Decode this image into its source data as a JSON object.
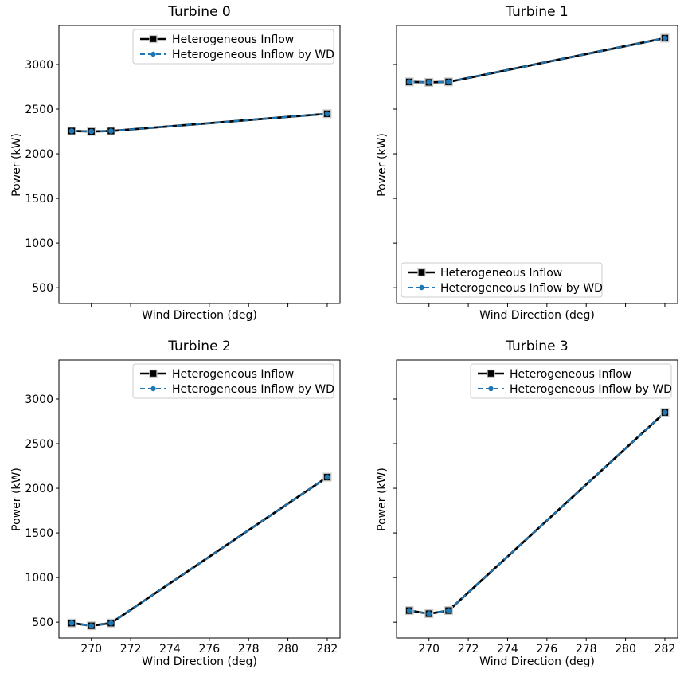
{
  "figure": {
    "background": "#ffffff"
  },
  "colors": {
    "series1": "#000000",
    "series2": "#1f77b4",
    "marker_edge": "#c8c8c8",
    "legend_border": "#cccccc",
    "legend_bg": "rgba(255,255,255,0.88)",
    "axis": "#000000",
    "text": "#000000"
  },
  "chart_data": [
    {
      "type": "line",
      "title": "Turbine 0",
      "xlabel": "Wind Direction (deg)",
      "ylabel": "Power (kW)",
      "x": [
        269,
        270,
        271,
        282
      ],
      "series": [
        {
          "name": "Heterogeneous Inflow",
          "values": [
            2255,
            2250,
            2255,
            2448
          ],
          "line": "solid",
          "color": "#000000",
          "marker": "square"
        },
        {
          "name": "Heterogeneous Inflow by WD",
          "values": [
            2255,
            2250,
            2255,
            2448
          ],
          "line": "dashed",
          "color": "#1f77b4",
          "marker": "circle"
        }
      ],
      "xlim": [
        268.35,
        282.65
      ],
      "ylim": [
        323,
        3437
      ],
      "xticks": [
        270,
        272,
        274,
        276,
        278,
        280,
        282
      ],
      "yticks": [
        500,
        1000,
        1500,
        2000,
        2500,
        3000
      ],
      "show_xticklabels": false,
      "show_yticklabels": true,
      "legend_loc": "upper right",
      "grid": false
    },
    {
      "type": "line",
      "title": "Turbine 1",
      "xlabel": "Wind Direction (deg)",
      "ylabel": "Power (kW)",
      "x": [
        269,
        270,
        271,
        282
      ],
      "series": [
        {
          "name": "Heterogeneous Inflow",
          "values": [
            2805,
            2800,
            2805,
            3295
          ],
          "line": "solid",
          "color": "#000000",
          "marker": "square"
        },
        {
          "name": "Heterogeneous Inflow by WD",
          "values": [
            2805,
            2800,
            2805,
            3295
          ],
          "line": "dashed",
          "color": "#1f77b4",
          "marker": "circle"
        }
      ],
      "xlim": [
        268.35,
        282.65
      ],
      "ylim": [
        323,
        3437
      ],
      "xticks": [
        270,
        272,
        274,
        276,
        278,
        280,
        282
      ],
      "yticks": [
        500,
        1000,
        1500,
        2000,
        2500,
        3000
      ],
      "show_xticklabels": false,
      "show_yticklabels": false,
      "legend_loc": "lower left",
      "grid": false
    },
    {
      "type": "line",
      "title": "Turbine 2",
      "xlabel": "Wind Direction (deg)",
      "ylabel": "Power (kW)",
      "x": [
        269,
        270,
        271,
        282
      ],
      "series": [
        {
          "name": "Heterogeneous Inflow",
          "values": [
            490,
            460,
            490,
            2125
          ],
          "line": "solid",
          "color": "#000000",
          "marker": "square"
        },
        {
          "name": "Heterogeneous Inflow by WD",
          "values": [
            490,
            460,
            490,
            2125
          ],
          "line": "dashed",
          "color": "#1f77b4",
          "marker": "circle"
        }
      ],
      "xlim": [
        268.35,
        282.65
      ],
      "ylim": [
        323,
        3437
      ],
      "xticks": [
        270,
        272,
        274,
        276,
        278,
        280,
        282
      ],
      "yticks": [
        500,
        1000,
        1500,
        2000,
        2500,
        3000
      ],
      "show_xticklabels": true,
      "show_yticklabels": true,
      "legend_loc": "upper right",
      "grid": false
    },
    {
      "type": "line",
      "title": "Turbine 3",
      "xlabel": "Wind Direction (deg)",
      "ylabel": "Power (kW)",
      "x": [
        269,
        270,
        271,
        282
      ],
      "series": [
        {
          "name": "Heterogeneous Inflow",
          "values": [
            630,
            595,
            630,
            2850
          ],
          "line": "solid",
          "color": "#000000",
          "marker": "square"
        },
        {
          "name": "Heterogeneous Inflow by WD",
          "values": [
            630,
            595,
            630,
            2850
          ],
          "line": "dashed",
          "color": "#1f77b4",
          "marker": "circle"
        }
      ],
      "xlim": [
        268.35,
        282.65
      ],
      "ylim": [
        323,
        3437
      ],
      "xticks": [
        270,
        272,
        274,
        276,
        278,
        280,
        282
      ],
      "yticks": [
        500,
        1000,
        1500,
        2000,
        2500,
        3000
      ],
      "show_xticklabels": true,
      "show_yticklabels": false,
      "legend_loc": "upper right",
      "grid": false
    }
  ]
}
